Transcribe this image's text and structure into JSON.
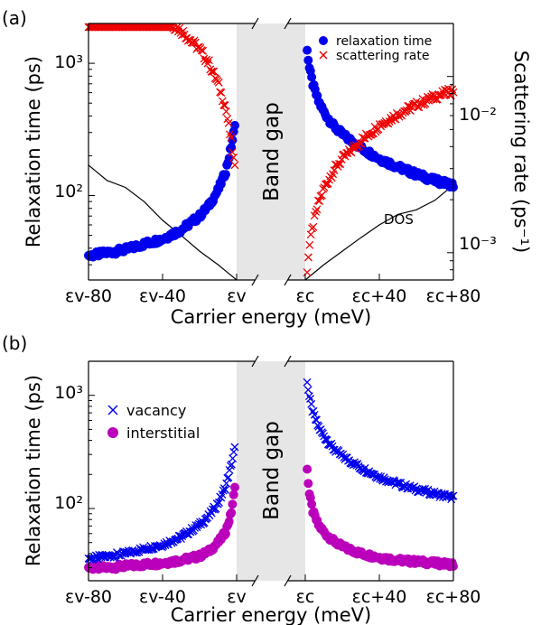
{
  "colors": {
    "relaxation": "#0000ee",
    "scattering": "#ee0000",
    "vacancy": "#0000ee",
    "interstitial": "#bb00bb",
    "dos": "#000000",
    "band_gap": "#e6e6e6"
  },
  "chart_data": [
    {
      "type": "scatter",
      "panel_label": "(a)",
      "xlabel": "Carrier energy (meV)",
      "ylabel": "Relaxation time (ps)",
      "ylabel_right": "Scattering rate (ps⁻¹)",
      "x_tick_labels": [
        "εv-80",
        "εv-40",
        "εv",
        "εc",
        "εc+40",
        "εc+80"
      ],
      "y_tick_labels": [
        "10²",
        "10³"
      ],
      "y_right_tick_labels": [
        "10⁻³",
        "10⁻²"
      ],
      "y_scale": "log",
      "ylim": [
        23,
        2000
      ],
      "ylim_right": [
        0.0007,
        0.02
      ],
      "band_gap_label": "Band gap",
      "annotation": "DOS",
      "legend_position": "top-right",
      "series": [
        {
          "name": "relaxation time",
          "marker": "circle",
          "axis": "left",
          "valence": {
            "x": [
              -80,
              -70,
              -60,
              -50,
              -40,
              -30,
              -20,
              -15,
              -10,
              -6,
              -3,
              -1
            ],
            "y": [
              35,
              37,
              39,
              43,
              47,
              55,
              70,
              84,
              110,
              150,
              230,
              330
            ]
          },
          "conduction": {
            "x": [
              1,
              2,
              4,
              7,
              10,
              15,
              20,
              30,
              40,
              50,
              60,
              70,
              80
            ],
            "y": [
              1300,
              950,
              700,
              520,
              430,
              340,
              290,
              230,
              190,
              165,
              145,
              130,
              120
            ]
          }
        },
        {
          "name": "scattering rate",
          "marker": "x",
          "axis": "right",
          "valence": {
            "x": [
              -80,
              -70,
              -60,
              -50,
              -40,
              -30,
              -20,
              -15,
              -10,
              -6,
              -3,
              -1
            ],
            "y": [
              0.0285,
              0.027,
              0.0256,
              0.0233,
              0.0213,
              0.0182,
              0.0143,
              0.0119,
              0.0091,
              0.0067,
              0.0043,
              0.003
            ]
          },
          "conduction": {
            "x": [
              1,
              2,
              4,
              7,
              10,
              15,
              20,
              30,
              40,
              50,
              60,
              70,
              80
            ],
            "y": [
              0.0008,
              0.00105,
              0.0014,
              0.0019,
              0.0023,
              0.0029,
              0.0034,
              0.0043,
              0.0053,
              0.0061,
              0.0069,
              0.0077,
              0.0083
            ]
          }
        }
      ],
      "dos": {
        "valence": {
          "x": [
            -80,
            -70,
            -60,
            -50,
            -40,
            -30,
            -20,
            -10,
            0
          ],
          "y": [
            170,
            130,
            115,
            90,
            65,
            50,
            38,
            30,
            23
          ]
        },
        "conduction": {
          "x": [
            0,
            10,
            20,
            30,
            40,
            50,
            60,
            70,
            80
          ],
          "y": [
            23,
            30,
            38,
            48,
            60,
            72,
            78,
            92,
            120
          ]
        }
      }
    },
    {
      "type": "scatter",
      "panel_label": "(b)",
      "xlabel": "Carrier energy (meV)",
      "ylabel": "Relaxation time (ps)",
      "x_tick_labels": [
        "εv-80",
        "εv-40",
        "εv",
        "εc",
        "εc+40",
        "εc+80"
      ],
      "y_tick_labels": [
        "10²",
        "10³"
      ],
      "y_scale": "log",
      "ylim": [
        23,
        2000
      ],
      "band_gap_label": "Band gap",
      "legend_position": "top-left",
      "series": [
        {
          "name": "vacancy",
          "marker": "x",
          "valence": {
            "x": [
              -80,
              -70,
              -60,
              -50,
              -40,
              -30,
              -20,
              -15,
              -10,
              -6,
              -3,
              -1
            ],
            "y": [
              36,
              38,
              40,
              44,
              48,
              56,
              72,
              86,
              112,
              155,
              240,
              340
            ]
          },
          "conduction": {
            "x": [
              1,
              2,
              4,
              7,
              10,
              15,
              20,
              30,
              40,
              50,
              60,
              70,
              80
            ],
            "y": [
              1350,
              1000,
              720,
              530,
              440,
              340,
              290,
              230,
              190,
              165,
              148,
              135,
              125
            ]
          }
        },
        {
          "name": "interstitial",
          "marker": "circle",
          "valence": {
            "x": [
              -80,
              -70,
              -60,
              -50,
              -40,
              -30,
              -20,
              -15,
              -10,
              -6,
              -3,
              -1
            ],
            "y": [
              30,
              30,
              31,
              32,
              33,
              35,
              38,
              42,
              50,
              62,
              90,
              150
            ]
          },
          "conduction": {
            "x": [
              1,
              2,
              4,
              7,
              10,
              15,
              20,
              30,
              40,
              50,
              60,
              70,
              80
            ],
            "y": [
              230,
              140,
              95,
              72,
              62,
              52,
              46,
              40,
              37,
              35,
              34,
              33,
              32
            ]
          }
        }
      ]
    }
  ]
}
